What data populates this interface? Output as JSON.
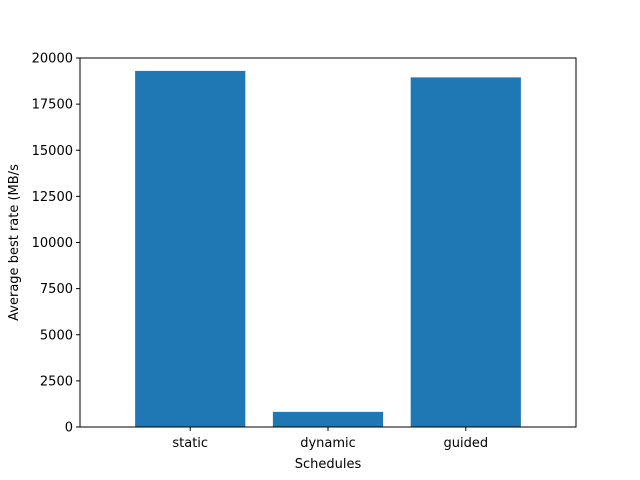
{
  "chart_data": {
    "type": "bar",
    "title": "",
    "xlabel": "Schedules",
    "ylabel": "Average best rate (MB/s",
    "categories": [
      "static",
      "dynamic",
      "guided"
    ],
    "values": [
      19300,
      820,
      18950
    ],
    "ylim": [
      0,
      20000
    ],
    "yticks": [
      0,
      2500,
      5000,
      7500,
      10000,
      12500,
      15000,
      17500,
      20000
    ],
    "ytick_labels": [
      "0",
      "2500",
      "5000",
      "7500",
      "10000",
      "12500",
      "15000",
      "17500",
      "20000"
    ],
    "bar_color": "#1f77b4",
    "grid": false,
    "legend": false
  }
}
